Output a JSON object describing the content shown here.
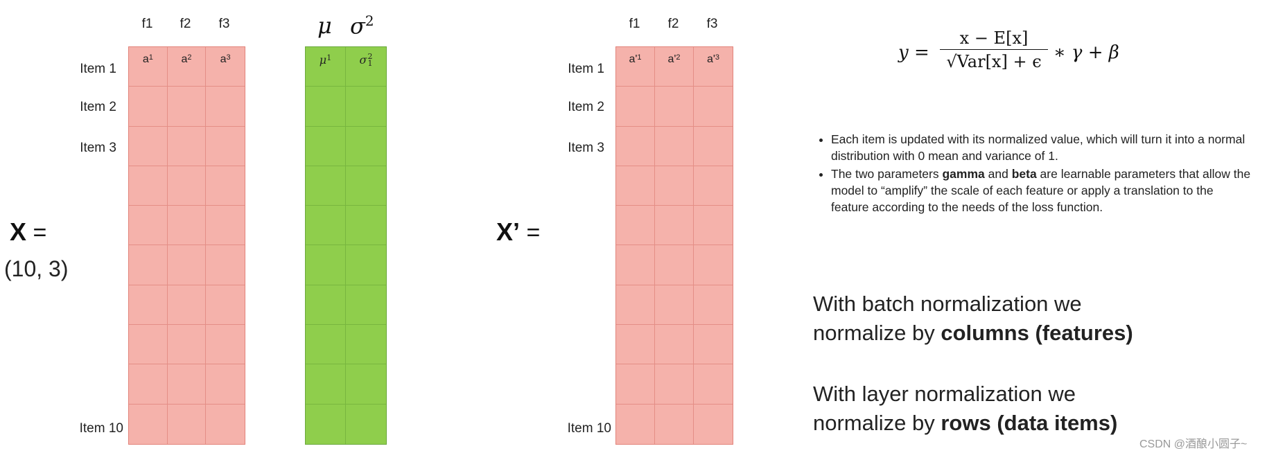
{
  "x_matrix": {
    "label": "X",
    "equals": "=",
    "shape": "(10, 3)",
    "columns": [
      "f1",
      "f2",
      "f3"
    ],
    "rows": [
      "Item 1",
      "Item 2",
      "Item 3",
      "Item 10"
    ],
    "first_row_cells": [
      {
        "base": "a",
        "sub": "1"
      },
      {
        "base": "a",
        "sub": "2"
      },
      {
        "base": "a",
        "sub": "3"
      }
    ]
  },
  "stats": {
    "mu_header": "μ",
    "sigma_header": "σ",
    "sigma_power": "2",
    "mu_cell_base": "μ",
    "mu_cell_sub": "1",
    "sigma_cell_base": "σ",
    "sigma_cell_sub": "1",
    "sigma_cell_sup": "2"
  },
  "x_prime_matrix": {
    "label": "X’",
    "equals": "=",
    "columns": [
      "f1",
      "f2",
      "f3"
    ],
    "rows": [
      "Item 1",
      "Item 2",
      "Item 3",
      "Item 10"
    ],
    "first_row_cells": [
      {
        "base": "a'",
        "sub": "1"
      },
      {
        "base": "a'",
        "sub": "2"
      },
      {
        "base": "a'",
        "sub": "3"
      }
    ]
  },
  "formula": {
    "lhs": "y =",
    "numerator": "x − E[x]",
    "denominator": "√Var[x] + ϵ",
    "rhs": "∗ γ + β"
  },
  "bullets": {
    "b1": "Each item is updated with its normalized value, which will turn it into a normal distribution with 0 mean and variance of 1.",
    "b2_pre": "The two parameters ",
    "b2_gamma": "gamma",
    "b2_and": " and ",
    "b2_beta": "beta",
    "b2_post": " are learnable parameters that allow the model to “amplify” the scale of each feature or apply a translation to the feature according to the needs of the loss function."
  },
  "summary": {
    "batch_line1": "With batch normalization we",
    "batch_line2_pre": "normalize by ",
    "batch_line2_bold": "columns (features)",
    "layer_line1": "With layer normalization we",
    "layer_line2_pre": "normalize by ",
    "layer_line2_bold": "rows (data items)"
  },
  "watermark": "CSDN @酒酿小圆子~",
  "colors": {
    "matrix_fill": "#f5b2ab",
    "matrix_border": "#e48e86",
    "stats_fill": "#8fce4c",
    "stats_border": "#78b63f"
  }
}
